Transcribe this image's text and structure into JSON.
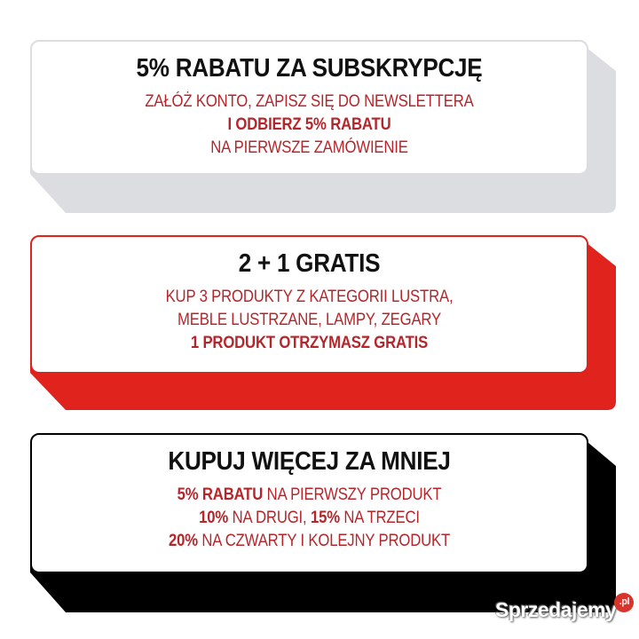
{
  "colors": {
    "gray": "#dcdde1",
    "red": "#e0231d",
    "black": "#000000",
    "accent_text": "#b5262b"
  },
  "cards": [
    {
      "title": "5% RABATU ZA SUBSKRYPCJĘ",
      "lines": [
        "ZAŁÓŻ KONTO, ZAPISZ SIĘ DO NEWSLETTERA",
        "I ODBIERZ 5% RABATU",
        "NA PIERWSZE ZAMÓWIENIE"
      ]
    },
    {
      "title": "2 + 1 GRATIS",
      "lines": [
        "KUP 3 PRODUKTY Z KATEGORII LUSTRA,",
        "MEBLE LUSTRZANE, LAMPY, ZEGARY",
        "1 PRODUKT OTRZYMASZ GRATIS"
      ]
    },
    {
      "title": "KUPUJ WIĘCEJ ZA MNIEJ",
      "lines": [
        {
          "bold": "5% RABATU",
          "rest": " NA PIERWSZY PRODUKT"
        },
        {
          "bold1": "10%",
          "mid": " NA DRUGI, ",
          "bold2": "15%",
          "rest": " NA TRZECI"
        },
        {
          "bold": "20%",
          "rest": " NA CZWARTY I KOLEJNY PRODUKT"
        }
      ]
    }
  ],
  "watermark": {
    "text": "Sprzedajemy",
    "suffix": ".pl"
  }
}
